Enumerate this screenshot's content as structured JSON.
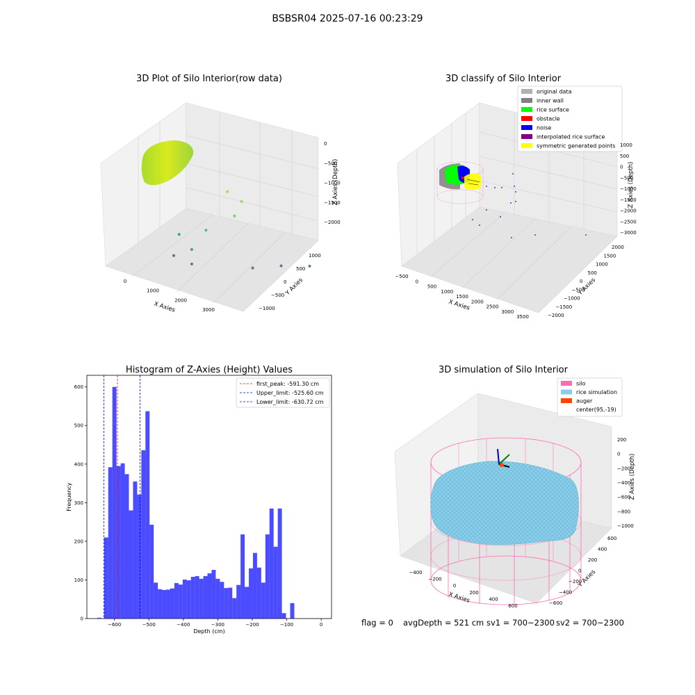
{
  "suptitle": "BSBSR04 2025-07-16 00:23:29",
  "footer": {
    "flag": "flag = 0",
    "avgdepth": "avgDepth = 521 cm",
    "sv1": "sv1 = 700~2300",
    "sv2": "sv2 = 700~2300"
  },
  "chart_data": [
    {
      "type": "scatter",
      "projection": "3d",
      "title": "3D Plot of Silo Interior(row data)",
      "xlabel": "X Axies",
      "ylabel": "Y Axies",
      "zlabel": "Z Axies (Depth)",
      "xticks": [
        "0",
        "1000",
        "2000",
        "3000"
      ],
      "yticks": [
        "−1000",
        "−500",
        "0",
        "500",
        "1000"
      ],
      "zticks": [
        "0",
        "−500",
        "−1000",
        "−1500",
        "−2000"
      ],
      "colormap": "viridis",
      "outliers": [
        {
          "x": 3300,
          "y": 1000,
          "z": -1700
        },
        {
          "x": 2900,
          "y": 600,
          "z": -1700
        },
        {
          "x": 2500,
          "y": 200,
          "z": -1750
        },
        {
          "x": 1400,
          "y": -400,
          "z": -1500
        },
        {
          "x": 1400,
          "y": -400,
          "z": -1800
        },
        {
          "x": 1000,
          "y": -500,
          "z": -1700
        },
        {
          "x": 1100,
          "y": -450,
          "z": -1250
        },
        {
          "x": 1600,
          "y": -200,
          "z": -1100
        },
        {
          "x": 2000,
          "y": 200,
          "z": -800
        },
        {
          "x": 2100,
          "y": 300,
          "z": -500
        },
        {
          "x": 1900,
          "y": 100,
          "z": -300
        }
      ]
    },
    {
      "type": "scatter",
      "projection": "3d",
      "title": "3D classify of Silo Interior",
      "xlabel": "X Axies",
      "ylabel": "Y Axies",
      "zlabel": "Z Axies (Depth)",
      "xticks": [
        "−500",
        "0",
        "500",
        "1000",
        "1500",
        "2000",
        "2500",
        "3000",
        "3500"
      ],
      "yticks": [
        "−2000",
        "−1500",
        "−1000",
        "−500",
        "0",
        "500",
        "1000",
        "1500",
        "2000"
      ],
      "zticks": [
        "1000",
        "500",
        "0",
        "−500",
        "−1000",
        "−1500",
        "−2000",
        "−2500",
        "−3000"
      ],
      "legend_position": "top-right",
      "legend": [
        {
          "label": "original data",
          "color": "#b0b0b0"
        },
        {
          "label": "inner wall",
          "color": "#808080"
        },
        {
          "label": "rice surface",
          "color": "#00ff00"
        },
        {
          "label": "obstacle",
          "color": "#ff0000"
        },
        {
          "label": "noise",
          "color": "#0000ff"
        },
        {
          "label": "interpolated rice surface",
          "color": "#800080"
        },
        {
          "label": "symmetric generated points",
          "color": "#ffff00"
        }
      ]
    },
    {
      "type": "bar",
      "title": "Histogram of Z-Axies (Height) Values",
      "xlabel": "Depth (cm)",
      "ylabel": "Frequency",
      "xlim": [
        -680,
        30
      ],
      "ylim": [
        0,
        630
      ],
      "xticks": [
        -600,
        -500,
        -400,
        -300,
        -200,
        -100,
        0
      ],
      "yticks": [
        0,
        100,
        200,
        300,
        400,
        500,
        600
      ],
      "bar_color": "#0000ff",
      "bin_start": -630,
      "bin_width": 12,
      "values": [
        210,
        392,
        600,
        395,
        402,
        374,
        280,
        355,
        321,
        436,
        537,
        243,
        93,
        76,
        74,
        75,
        78,
        92,
        88,
        101,
        99,
        108,
        110,
        103,
        110,
        117,
        126,
        103,
        95,
        79,
        80,
        53,
        87,
        218,
        82,
        130,
        170,
        132,
        93,
        218,
        285,
        186,
        285,
        14,
        0,
        40
      ],
      "extra_bars": [
        {
          "x": -650,
          "width": 12,
          "value": 2
        }
      ],
      "legend_position": "top-right",
      "vlines": [
        {
          "label": "first_peak: -591.30 cm",
          "x": -591.3,
          "color": "#ff0000"
        },
        {
          "label": "Upper_limit: -525.60 cm",
          "x": -525.6,
          "color": "#0000ff"
        },
        {
          "label": "Lower_limit: -630.72 cm",
          "x": -630.72,
          "color": "#0000ff"
        }
      ]
    },
    {
      "type": "surface",
      "projection": "3d",
      "title": "3D simulation of Silo Interior",
      "xlabel": "X Axies",
      "ylabel": "Y Axies",
      "zlabel": "Z Axies (Depth)",
      "xticks": [
        "−400",
        "−200",
        "0",
        "200",
        "400",
        "600"
      ],
      "yticks": [
        "−600",
        "−400",
        "−200",
        "0",
        "200",
        "400",
        "600"
      ],
      "zticks": [
        "200",
        "0",
        "−200",
        "−400",
        "−600",
        "−800",
        "−1000"
      ],
      "legend_position": "top-right",
      "legend": [
        {
          "label": "silo",
          "color": "#ff69b4"
        },
        {
          "label": "rice simulation",
          "color": "#87ceeb"
        },
        {
          "label": "auger",
          "color": "#ff4500"
        },
        {
          "label": "center(95,-19)",
          "color": ""
        }
      ]
    }
  ]
}
